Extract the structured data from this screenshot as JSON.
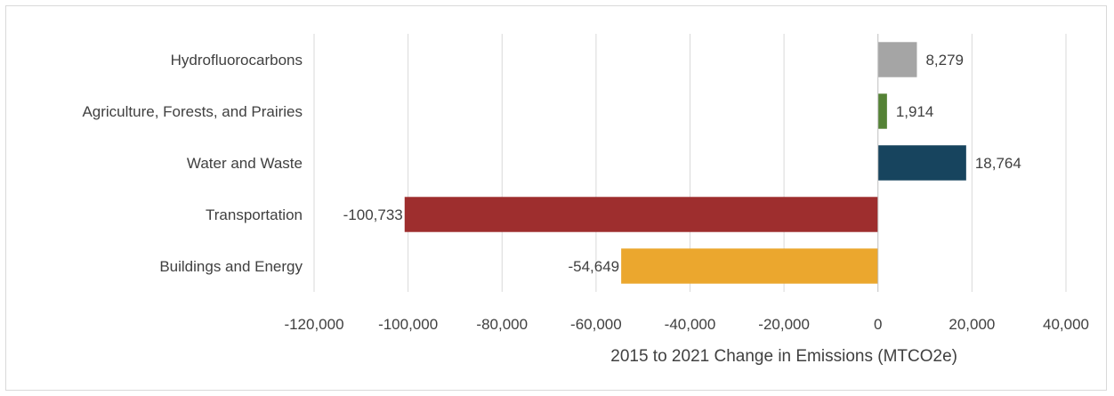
{
  "chart_data": {
    "type": "bar",
    "orientation": "horizontal",
    "categories": [
      "Hydrofluorocarbons",
      "Agriculture, Forests, and Prairies",
      "Water and Waste",
      "Transportation",
      "Buildings and Energy"
    ],
    "values": [
      8279,
      1914,
      18764,
      -100733,
      -54649
    ],
    "data_labels": [
      "8,279",
      "1,914",
      "18,764",
      "-100,733",
      "-54,649"
    ],
    "colors": [
      "#a5a5a5",
      "#548235",
      "#17445e",
      "#9e2e2e",
      "#eba72e"
    ],
    "xlabel": "2015 to 2021 Change in Emissions (MTCO2e)",
    "ylabel": "",
    "xlim": [
      -120000,
      40000
    ],
    "xticks": [
      -120000,
      -100000,
      -80000,
      -60000,
      -40000,
      -20000,
      0,
      20000,
      40000
    ],
    "xtick_labels": [
      "-120,000",
      "-100,000",
      "-80,000",
      "-60,000",
      "-40,000",
      "-20,000",
      "0",
      "20,000",
      "40,000"
    ],
    "grid": "vertical",
    "legend": "none"
  }
}
